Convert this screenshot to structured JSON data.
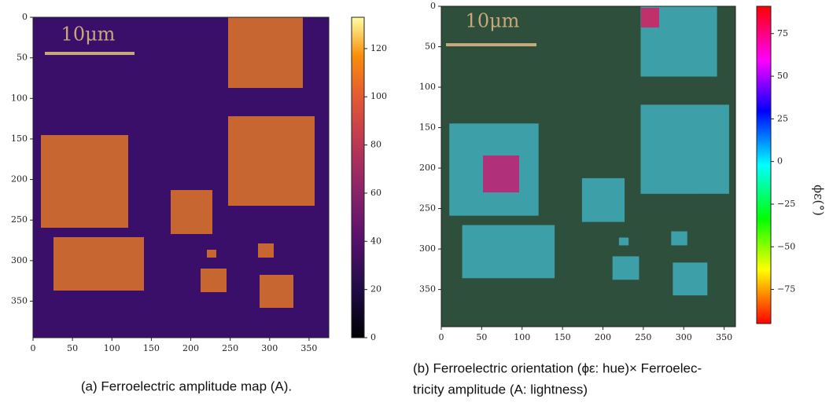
{
  "chart_data": [
    {
      "type": "image",
      "xlim": [
        0,
        375
      ],
      "ylim": [
        0,
        395
      ],
      "y_inverted": true,
      "xticks": [
        0,
        50,
        100,
        150,
        200,
        250,
        300,
        350
      ],
      "yticks": [
        0,
        50,
        100,
        150,
        200,
        250,
        300,
        350
      ],
      "scale_bar_label": "10μm",
      "colorbar": {
        "colormap": "inferno",
        "lim": [
          0,
          133
        ],
        "ticks": [
          0,
          20,
          40,
          60,
          80,
          100,
          120
        ]
      },
      "caption": [
        "(a) Ferroelectric amplitude map (A)."
      ]
    },
    {
      "type": "image",
      "xlim": [
        0,
        364
      ],
      "ylim": [
        0,
        396
      ],
      "y_inverted": true,
      "xticks": [
        0,
        50,
        100,
        150,
        200,
        250,
        300,
        350
      ],
      "yticks": [
        0,
        50,
        100,
        150,
        200,
        250,
        300,
        350
      ],
      "scale_bar_label": "10μm",
      "colorbar": {
        "colormap": "hsv",
        "lim": [
          -95,
          91
        ],
        "label": "ϕε(°)",
        "ticks": [
          {
            "value": -75,
            "label": "−75"
          },
          {
            "value": -50,
            "label": "−50"
          },
          {
            "value": -25,
            "label": "−25"
          },
          0,
          25,
          50,
          75
        ]
      },
      "caption": [
        "(b) Ferroelectric orientation (ϕε: hue)× Ferroelec-",
        "tricity amplitude (A: lightness)"
      ]
    }
  ]
}
